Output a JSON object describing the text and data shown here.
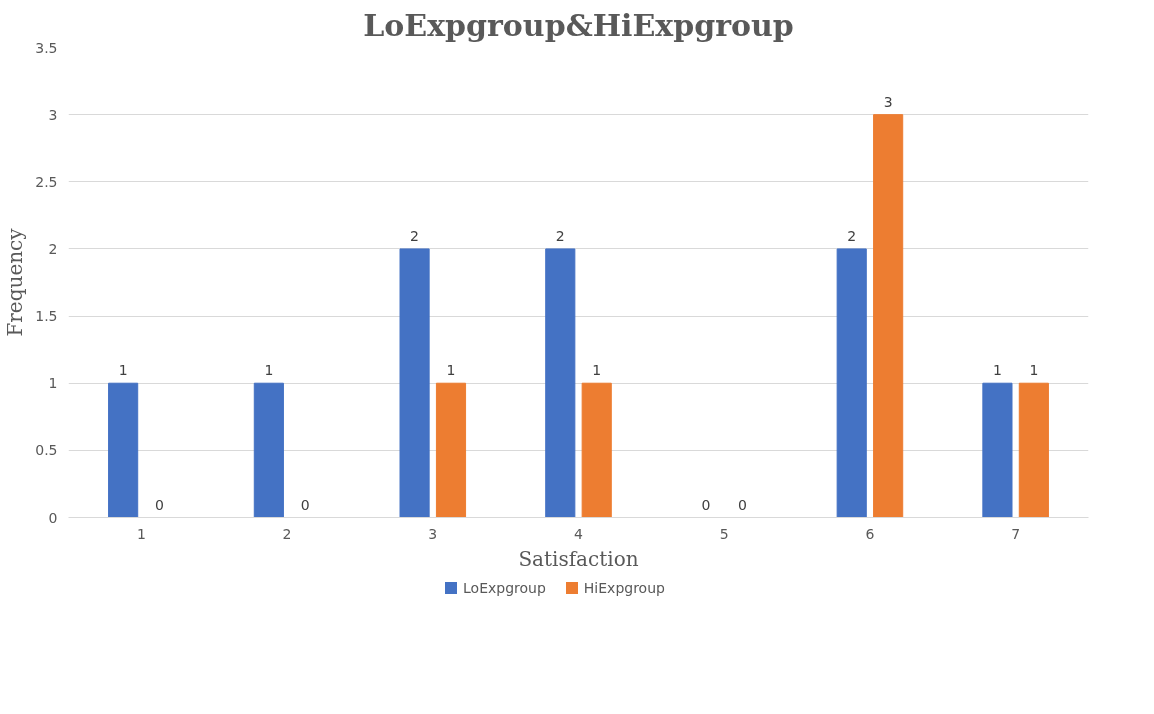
{
  "chart_data": {
    "type": "bar",
    "title": "LoExpgroup&HiExpgroup",
    "xlabel": "Satisfaction",
    "ylabel": "Frequency",
    "categories": [
      "1",
      "2",
      "3",
      "4",
      "5",
      "6",
      "7"
    ],
    "series": [
      {
        "name": "LoExpgroup",
        "color": "#4472c4",
        "values": [
          1,
          1,
          2,
          2,
          0,
          2,
          1
        ]
      },
      {
        "name": "HiExpgroup",
        "color": "#ed7d31",
        "values": [
          0,
          0,
          1,
          1,
          0,
          3,
          1
        ]
      }
    ],
    "ylim": [
      0,
      3.5
    ],
    "yticks": [
      0,
      0.5,
      1,
      1.5,
      2,
      2.5,
      3,
      3.5
    ],
    "grid": "y",
    "legend": "bottom",
    "data_labels": true
  }
}
